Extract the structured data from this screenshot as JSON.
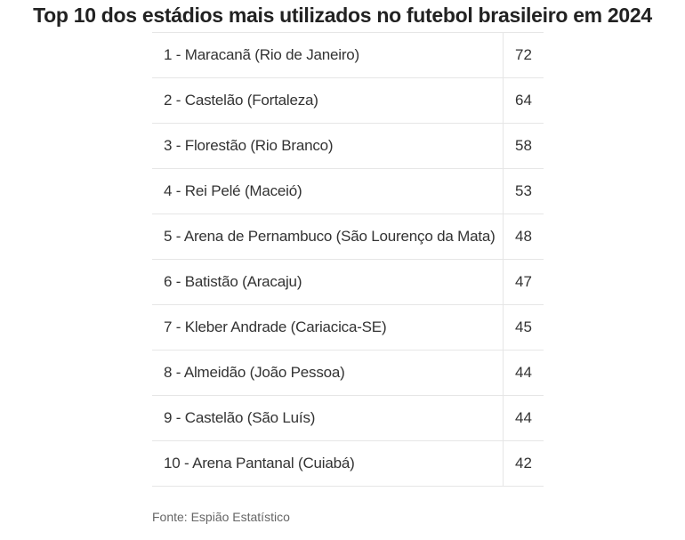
{
  "chart_data": {
    "type": "table",
    "title": "Top 10 dos estádios mais utilizados no futebol brasileiro em 2024",
    "rows": [
      {
        "label": "1 - Maracanã (Rio de Janeiro)",
        "value": "72"
      },
      {
        "label": "2 - Castelão (Fortaleza)",
        "value": "64"
      },
      {
        "label": "3 - Florestão (Rio Branco)",
        "value": "58"
      },
      {
        "label": "4 - Rei Pelé (Maceió)",
        "value": "53"
      },
      {
        "label": "5 - Arena de Pernambuco (São Lourenço da Mata)",
        "value": "48"
      },
      {
        "label": "6 - Batistão (Aracaju)",
        "value": "47"
      },
      {
        "label": "7 - Kleber Andrade (Cariacica-SE)",
        "value": "45"
      },
      {
        "label": "8 - Almeidão (João Pessoa)",
        "value": "44"
      },
      {
        "label": "9 - Castelão (São Luís)",
        "value": "44"
      },
      {
        "label": "10 - Arena Pantanal (Cuiabá)",
        "value": "42"
      }
    ],
    "source": "Fonte: Espião Estatístico"
  }
}
